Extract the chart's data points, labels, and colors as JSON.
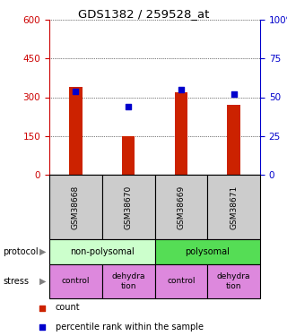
{
  "title": "GDS1382 / 259528_at",
  "samples": [
    "GSM38668",
    "GSM38670",
    "GSM38669",
    "GSM38671"
  ],
  "counts": [
    340,
    150,
    320,
    270
  ],
  "percentiles": [
    54,
    44,
    55,
    52
  ],
  "left_ylim": [
    0,
    600
  ],
  "right_ylim": [
    0,
    100
  ],
  "left_yticks": [
    0,
    150,
    300,
    450,
    600
  ],
  "right_yticks": [
    0,
    25,
    50,
    75,
    100
  ],
  "right_yticklabels": [
    "0",
    "25",
    "50",
    "75",
    "100%"
  ],
  "left_ycolor": "#cc0000",
  "right_ycolor": "#0000cc",
  "bar_color": "#cc2200",
  "dot_color": "#0000cc",
  "protocol_labels": [
    "non-polysomal",
    "polysomal"
  ],
  "protocol_colors": [
    "#ccffcc",
    "#55dd55"
  ],
  "stress_labels": [
    "control",
    "dehydra\ntion",
    "control",
    "dehydra\ntion"
  ],
  "stress_color": "#dd88dd",
  "sample_bg_color": "#cccccc",
  "legend_count_color": "#cc2200",
  "legend_pct_color": "#0000cc",
  "background_color": "#ffffff"
}
